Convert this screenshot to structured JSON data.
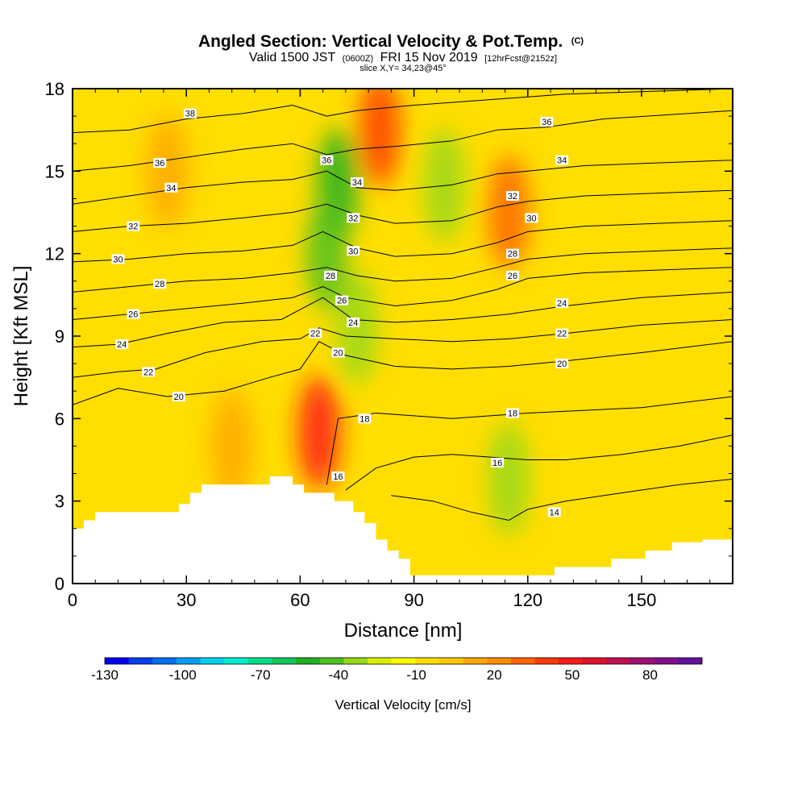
{
  "title": {
    "main": "Angled Section: Vertical Velocity & Pot.Temp.",
    "main_units": "(C)",
    "valid_prefix": "Valid 1500 JST",
    "valid_utc": "(0600Z)",
    "valid_date": "FRI 15 Nov 2019",
    "forecast": "[12hrFcst@2152z]",
    "slice": "slice X,Y= 34,23@45°"
  },
  "chart_data": {
    "type": "heatmap",
    "xlabel": "Distance [nm]",
    "ylabel": "Height [Kft MSL]",
    "xlim": [
      0,
      174
    ],
    "ylim": [
      0,
      18
    ],
    "x_ticks": [
      0,
      30,
      60,
      90,
      120,
      150
    ],
    "y_ticks": [
      0,
      3,
      6,
      9,
      12,
      15,
      18
    ],
    "grid": false,
    "colorbar": {
      "label": "Vertical Velocity [cm/s]",
      "tick_labels": [
        "-130",
        "-100",
        "-70",
        "-40",
        "-10",
        "20",
        "50",
        "80"
      ],
      "tick_values": [
        -130,
        -100,
        -70,
        -40,
        -10,
        20,
        50,
        80
      ],
      "range": [
        -130,
        100
      ],
      "step": 10,
      "colors": [
        "#0000ee",
        "#0040ee",
        "#0070ee",
        "#00a0ee",
        "#00d0ee",
        "#00eecc",
        "#00dd88",
        "#10c860",
        "#20b020",
        "#50c020",
        "#98d818",
        "#dcee00",
        "#ffff00",
        "#ffdd00",
        "#ffc800",
        "#ffa800",
        "#ff8c00",
        "#ff6400",
        "#ff3c00",
        "#ff1a1a",
        "#e0102a",
        "#c01050",
        "#a01070",
        "#801088",
        "#60109a"
      ]
    },
    "velocity_features": [
      {
        "x": 70,
        "y": 14.5,
        "value": -50
      },
      {
        "x": 67,
        "y": 12,
        "value": -40
      },
      {
        "x": 75,
        "y": 9.3,
        "value": -30
      },
      {
        "x": 98,
        "y": 14.5,
        "value": -25
      },
      {
        "x": 115,
        "y": 3.8,
        "value": -25
      },
      {
        "x": 81,
        "y": 16.5,
        "value": 50
      },
      {
        "x": 115,
        "y": 13.5,
        "value": 45
      },
      {
        "x": 65,
        "y": 5.5,
        "value": 60
      },
      {
        "x": 25,
        "y": 15,
        "value": 25
      },
      {
        "x": 42,
        "y": 5,
        "value": 20
      }
    ],
    "terrain": [
      [
        0,
        2
      ],
      [
        3,
        2
      ],
      [
        3,
        2.3
      ],
      [
        6,
        2.3
      ],
      [
        6,
        2.6
      ],
      [
        28,
        2.6
      ],
      [
        28,
        2.9
      ],
      [
        31,
        2.9
      ],
      [
        31,
        3.3
      ],
      [
        34,
        3.3
      ],
      [
        34,
        3.6
      ],
      [
        52,
        3.6
      ],
      [
        52,
        3.9
      ],
      [
        58,
        3.9
      ],
      [
        58,
        3.6
      ],
      [
        61,
        3.6
      ],
      [
        61,
        3.3
      ],
      [
        69,
        3.3
      ],
      [
        69,
        3
      ],
      [
        74,
        3
      ],
      [
        74,
        2.6
      ],
      [
        77,
        2.6
      ],
      [
        77,
        2.2
      ],
      [
        80,
        2.2
      ],
      [
        80,
        1.6
      ],
      [
        83,
        1.6
      ],
      [
        83,
        1.2
      ],
      [
        86,
        1.2
      ],
      [
        86,
        0.9
      ],
      [
        89,
        0.9
      ],
      [
        89,
        0.6
      ],
      [
        89,
        0.3
      ],
      [
        127,
        0.3
      ],
      [
        127,
        0.6
      ],
      [
        142,
        0.6
      ],
      [
        142,
        0.9
      ],
      [
        151,
        0.9
      ],
      [
        151,
        1.2
      ],
      [
        158,
        1.2
      ],
      [
        158,
        1.5
      ],
      [
        166,
        1.5
      ],
      [
        166,
        1.6
      ],
      [
        174,
        1.6
      ]
    ],
    "isentropes": [
      {
        "level": 14,
        "points": [
          [
            84,
            3.2
          ],
          [
            95,
            3.0
          ],
          [
            105,
            2.6
          ],
          [
            115,
            2.3
          ],
          [
            120,
            2.7
          ],
          [
            130,
            3.0
          ],
          [
            145,
            3.3
          ],
          [
            160,
            3.6
          ],
          [
            174,
            3.8
          ]
        ]
      },
      {
        "level": 16,
        "points": [
          [
            72,
            3.4
          ],
          [
            80,
            4.2
          ],
          [
            90,
            4.6
          ],
          [
            100,
            4.7
          ],
          [
            110,
            4.6
          ],
          [
            120,
            4.5
          ],
          [
            130,
            4.5
          ],
          [
            145,
            4.7
          ],
          [
            160,
            5.0
          ],
          [
            174,
            5.4
          ]
        ]
      },
      {
        "level": 18,
        "points": [
          [
            67,
            3.6
          ],
          [
            70,
            6.0
          ],
          [
            80,
            6.2
          ],
          [
            90,
            6.1
          ],
          [
            100,
            6.0
          ],
          [
            110,
            6.1
          ],
          [
            120,
            6.2
          ],
          [
            135,
            6.3
          ],
          [
            150,
            6.4
          ],
          [
            174,
            6.8
          ]
        ]
      },
      {
        "level": 20,
        "points": [
          [
            0,
            6.5
          ],
          [
            12,
            7.1
          ],
          [
            25,
            6.8
          ],
          [
            40,
            7.0
          ],
          [
            52,
            7.5
          ],
          [
            60,
            7.8
          ],
          [
            65,
            8.8
          ],
          [
            72,
            8.3
          ],
          [
            85,
            7.9
          ],
          [
            100,
            7.8
          ],
          [
            115,
            7.9
          ],
          [
            130,
            8.1
          ],
          [
            150,
            8.4
          ],
          [
            174,
            8.8
          ]
        ]
      },
      {
        "level": 22,
        "points": [
          [
            0,
            7.5
          ],
          [
            12,
            7.7
          ],
          [
            22,
            7.8
          ],
          [
            35,
            8.4
          ],
          [
            50,
            8.8
          ],
          [
            60,
            8.9
          ],
          [
            65,
            9.3
          ],
          [
            72,
            9.0
          ],
          [
            85,
            8.9
          ],
          [
            100,
            8.8
          ],
          [
            115,
            8.9
          ],
          [
            130,
            9.1
          ],
          [
            150,
            9.4
          ],
          [
            174,
            9.6
          ]
        ]
      },
      {
        "level": 24,
        "points": [
          [
            0,
            8.6
          ],
          [
            12,
            8.7
          ],
          [
            25,
            9.1
          ],
          [
            40,
            9.5
          ],
          [
            55,
            9.6
          ],
          [
            66,
            10.4
          ],
          [
            74,
            9.6
          ],
          [
            85,
            9.5
          ],
          [
            100,
            9.6
          ],
          [
            115,
            9.8
          ],
          [
            130,
            10.1
          ],
          [
            150,
            10.4
          ],
          [
            174,
            10.6
          ]
        ]
      },
      {
        "level": 26,
        "points": [
          [
            0,
            9.6
          ],
          [
            15,
            9.8
          ],
          [
            30,
            10.0
          ],
          [
            45,
            10.2
          ],
          [
            58,
            10.4
          ],
          [
            66,
            10.8
          ],
          [
            72,
            10.4
          ],
          [
            85,
            10.1
          ],
          [
            100,
            10.3
          ],
          [
            112,
            10.7
          ],
          [
            120,
            11.1
          ],
          [
            135,
            11.3
          ],
          [
            174,
            11.5
          ]
        ]
      },
      {
        "level": 28,
        "points": [
          [
            0,
            10.6
          ],
          [
            15,
            10.8
          ],
          [
            30,
            11.0
          ],
          [
            45,
            11.1
          ],
          [
            58,
            11.3
          ],
          [
            67,
            11.5
          ],
          [
            75,
            11.2
          ],
          [
            85,
            11.0
          ],
          [
            100,
            11.1
          ],
          [
            112,
            11.5
          ],
          [
            120,
            11.8
          ],
          [
            135,
            12.0
          ],
          [
            174,
            12.2
          ]
        ]
      },
      {
        "level": 30,
        "points": [
          [
            0,
            11.7
          ],
          [
            15,
            11.8
          ],
          [
            30,
            12.0
          ],
          [
            45,
            12.1
          ],
          [
            58,
            12.3
          ],
          [
            66,
            12.8
          ],
          [
            75,
            12.2
          ],
          [
            85,
            11.9
          ],
          [
            100,
            12.0
          ],
          [
            112,
            12.4
          ],
          [
            120,
            12.8
          ],
          [
            135,
            13.0
          ],
          [
            174,
            13.2
          ]
        ]
      },
      {
        "level": 32,
        "points": [
          [
            0,
            12.8
          ],
          [
            15,
            13.0
          ],
          [
            30,
            13.1
          ],
          [
            45,
            13.3
          ],
          [
            58,
            13.5
          ],
          [
            67,
            13.8
          ],
          [
            75,
            13.4
          ],
          [
            85,
            13.1
          ],
          [
            100,
            13.2
          ],
          [
            112,
            13.7
          ],
          [
            120,
            13.9
          ],
          [
            135,
            14.1
          ],
          [
            174,
            14.3
          ]
        ]
      },
      {
        "level": 34,
        "points": [
          [
            0,
            13.8
          ],
          [
            15,
            14.1
          ],
          [
            30,
            14.4
          ],
          [
            45,
            14.6
          ],
          [
            58,
            14.7
          ],
          [
            67,
            15.0
          ],
          [
            75,
            14.4
          ],
          [
            85,
            14.3
          ],
          [
            100,
            14.5
          ],
          [
            112,
            14.9
          ],
          [
            120,
            15.0
          ],
          [
            135,
            15.2
          ],
          [
            174,
            15.4
          ]
        ]
      },
      {
        "level": 36,
        "points": [
          [
            0,
            15.0
          ],
          [
            15,
            15.2
          ],
          [
            30,
            15.5
          ],
          [
            45,
            15.8
          ],
          [
            58,
            16.0
          ],
          [
            67,
            15.6
          ],
          [
            75,
            15.8
          ],
          [
            85,
            15.9
          ],
          [
            100,
            16.1
          ],
          [
            112,
            16.5
          ],
          [
            125,
            16.6
          ],
          [
            140,
            16.9
          ],
          [
            174,
            17.2
          ]
        ]
      },
      {
        "level": 38,
        "points": [
          [
            0,
            16.4
          ],
          [
            15,
            16.5
          ],
          [
            30,
            16.9
          ],
          [
            45,
            17.1
          ],
          [
            58,
            17.4
          ],
          [
            67,
            17.0
          ],
          [
            75,
            17.2
          ],
          [
            90,
            17.4
          ],
          [
            110,
            17.6
          ],
          [
            130,
            17.8
          ],
          [
            174,
            18.0
          ]
        ]
      }
    ],
    "contour_labels": [
      {
        "text": "38",
        "x": 31,
        "y": 17.1
      },
      {
        "text": "36",
        "x": 23,
        "y": 15.3
      },
      {
        "text": "36",
        "x": 67,
        "y": 15.4
      },
      {
        "text": "36",
        "x": 125,
        "y": 16.8
      },
      {
        "text": "34",
        "x": 26,
        "y": 14.4
      },
      {
        "text": "34",
        "x": 75,
        "y": 14.6
      },
      {
        "text": "34",
        "x": 129,
        "y": 15.4
      },
      {
        "text": "32",
        "x": 16,
        "y": 13.0
      },
      {
        "text": "32",
        "x": 74,
        "y": 13.3
      },
      {
        "text": "32",
        "x": 116,
        "y": 14.1
      },
      {
        "text": "30",
        "x": 12,
        "y": 11.8
      },
      {
        "text": "30",
        "x": 74,
        "y": 12.1
      },
      {
        "text": "30",
        "x": 121,
        "y": 13.3
      },
      {
        "text": "28",
        "x": 23,
        "y": 10.9
      },
      {
        "text": "28",
        "x": 68,
        "y": 11.2
      },
      {
        "text": "28",
        "x": 116,
        "y": 12.0
      },
      {
        "text": "26",
        "x": 16,
        "y": 9.8
      },
      {
        "text": "26",
        "x": 71,
        "y": 10.3
      },
      {
        "text": "26",
        "x": 116,
        "y": 11.2
      },
      {
        "text": "24",
        "x": 13,
        "y": 8.7
      },
      {
        "text": "24",
        "x": 74,
        "y": 9.5
      },
      {
        "text": "24",
        "x": 129,
        "y": 10.2
      },
      {
        "text": "22",
        "x": 20,
        "y": 7.7
      },
      {
        "text": "22",
        "x": 64,
        "y": 9.1
      },
      {
        "text": "22",
        "x": 129,
        "y": 9.1
      },
      {
        "text": "20",
        "x": 28,
        "y": 6.8
      },
      {
        "text": "20",
        "x": 70,
        "y": 8.4
      },
      {
        "text": "20",
        "x": 129,
        "y": 8.0
      },
      {
        "text": "18",
        "x": 77,
        "y": 6.0
      },
      {
        "text": "18",
        "x": 116,
        "y": 6.2
      },
      {
        "text": "16",
        "x": 70,
        "y": 3.9
      },
      {
        "text": "16",
        "x": 112,
        "y": 4.4
      },
      {
        "text": "14",
        "x": 127,
        "y": 2.6
      }
    ]
  }
}
